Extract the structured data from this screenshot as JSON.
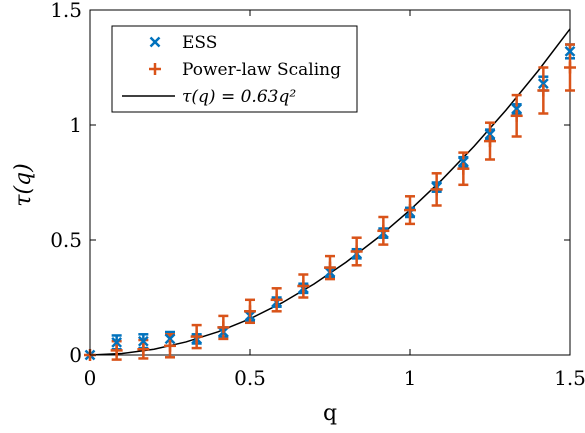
{
  "chart_data": {
    "type": "scatter",
    "xlabel": "q",
    "ylabel": "τ(q)",
    "xlim": [
      0,
      1.5
    ],
    "ylim": [
      0,
      1.5
    ],
    "x_ticks": [
      0,
      0.5,
      1,
      1.5
    ],
    "y_ticks": [
      0,
      0.5,
      1,
      1.5
    ],
    "x_tick_labels": [
      "0",
      "0.5",
      "1",
      "1.5"
    ],
    "y_tick_labels": [
      "0",
      "0.5",
      "1",
      "1.5"
    ],
    "legend_position": "top-left",
    "grid": false,
    "series": [
      {
        "name": "ESS",
        "marker": "x",
        "color": "#0072BD",
        "x": [
          0,
          0.0833,
          0.1667,
          0.25,
          0.3333,
          0.4167,
          0.5,
          0.5833,
          0.6667,
          0.75,
          0.8333,
          0.9167,
          1.0,
          1.0833,
          1.1667,
          1.25,
          1.3333,
          1.4167,
          1.5
        ],
        "y": [
          0,
          0.055,
          0.06,
          0.07,
          0.07,
          0.1,
          0.17,
          0.23,
          0.29,
          0.36,
          0.44,
          0.53,
          0.62,
          0.73,
          0.84,
          0.96,
          1.07,
          1.18,
          1.32
        ],
        "err": [
          0,
          0.03,
          0.03,
          0.03,
          0.02,
          0.02,
          0.02,
          0.02,
          0.02,
          0.02,
          0.02,
          0.02,
          0.02,
          0.02,
          0.02,
          0.02,
          0.02,
          0.03,
          0.03
        ]
      },
      {
        "name": "Power-law Scaling",
        "marker": "+",
        "color": "#D95319",
        "x": [
          0,
          0.0833,
          0.1667,
          0.25,
          0.3333,
          0.4167,
          0.5,
          0.5833,
          0.6667,
          0.75,
          0.8333,
          0.9167,
          1.0,
          1.0833,
          1.1667,
          1.25,
          1.3333,
          1.4167,
          1.5
        ],
        "y": [
          0,
          0.02,
          0.025,
          0.04,
          0.08,
          0.12,
          0.19,
          0.24,
          0.3,
          0.38,
          0.45,
          0.54,
          0.63,
          0.72,
          0.81,
          0.93,
          1.04,
          1.15,
          1.25
        ],
        "err": [
          0,
          0.04,
          0.04,
          0.05,
          0.05,
          0.05,
          0.05,
          0.05,
          0.05,
          0.05,
          0.06,
          0.06,
          0.06,
          0.07,
          0.07,
          0.08,
          0.09,
          0.1,
          0.1
        ]
      },
      {
        "name": "τ(q) = 0.63q²",
        "type": "line",
        "color": "#000000",
        "x": [
          0,
          0.1,
          0.2,
          0.3,
          0.4,
          0.5,
          0.6,
          0.7,
          0.8,
          0.9,
          1.0,
          1.1,
          1.2,
          1.3,
          1.4,
          1.5
        ],
        "y": [
          0,
          0.0063,
          0.0252,
          0.0567,
          0.1008,
          0.1575,
          0.2268,
          0.3087,
          0.4032,
          0.5103,
          0.63,
          0.7623,
          0.9072,
          1.0647,
          1.2348,
          1.4175
        ]
      }
    ]
  }
}
